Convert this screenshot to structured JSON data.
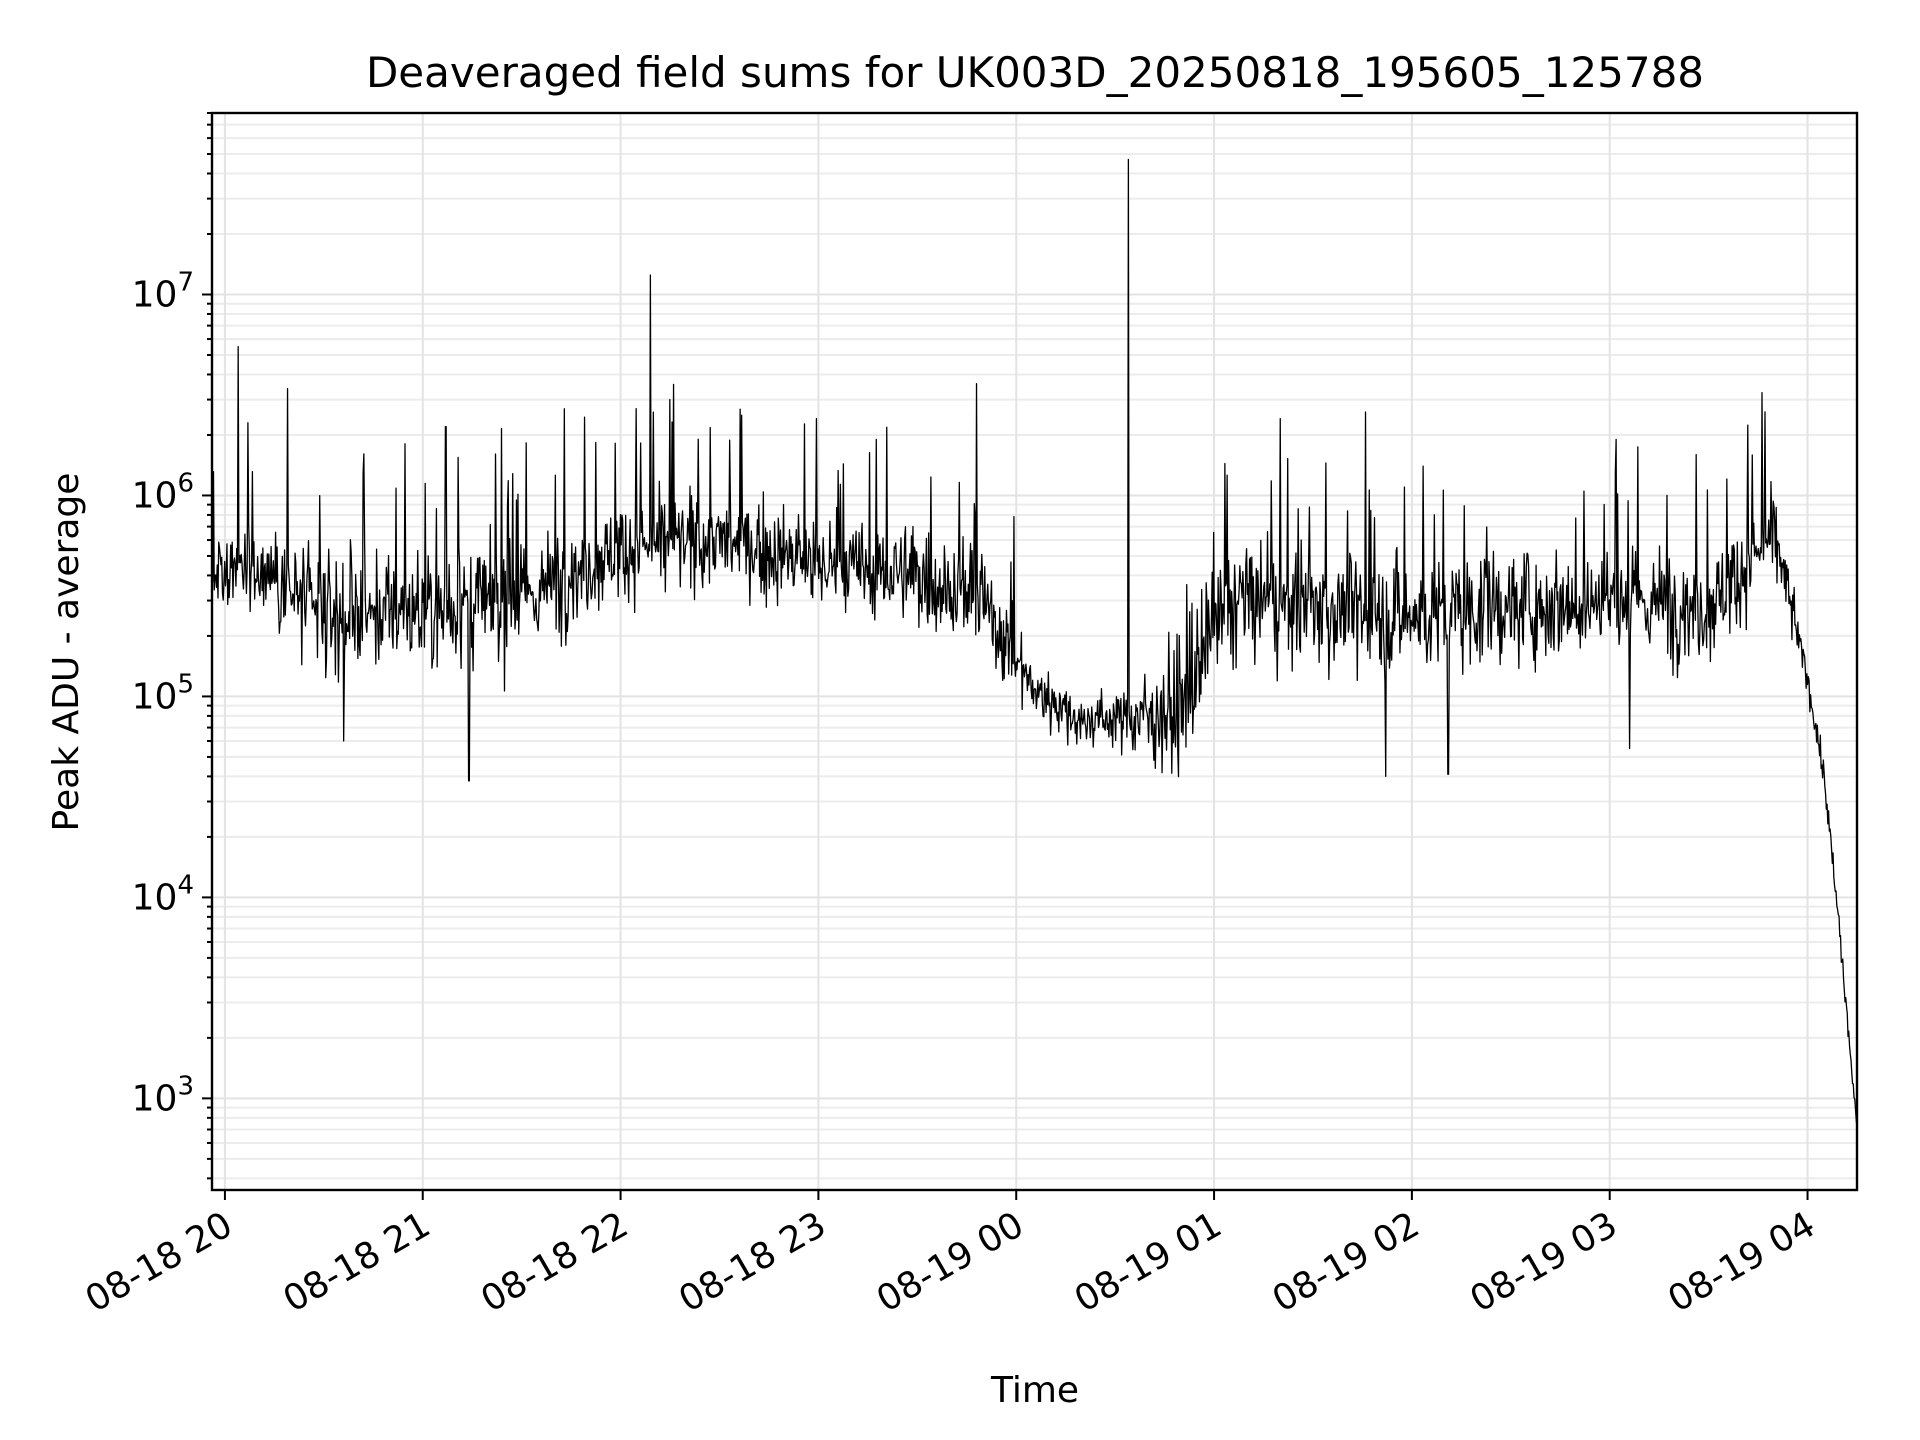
{
  "chart_data": {
    "type": "line",
    "title": "Deaveraged field sums for UK003D_20250818_195605_125788",
    "xlabel": "Time",
    "ylabel": "Peak ADU - average",
    "yscale": "log",
    "ylim": [
      350,
      80000000
    ],
    "xlim": [
      "2025-08-18 19:56:05",
      "2025-08-19 04:15:00"
    ],
    "grid": "on (major and minor)",
    "x_tick_labels": [
      "08-18 20",
      "08-18 21",
      "08-18 22",
      "08-18 23",
      "08-19 00",
      "08-19 01",
      "08-19 02",
      "08-19 03",
      "08-19 04"
    ],
    "x_tick_times": [
      "2025-08-18 20:00",
      "2025-08-18 21:00",
      "2025-08-18 22:00",
      "2025-08-18 23:00",
      "2025-08-19 00:00",
      "2025-08-19 01:00",
      "2025-08-19 02:00",
      "2025-08-19 03:00",
      "2025-08-19 04:00"
    ],
    "y_ticks": [
      {
        "base": "10",
        "exp": "3",
        "value": 1000
      },
      {
        "base": "10",
        "exp": "4",
        "value": 10000
      },
      {
        "base": "10",
        "exp": "5",
        "value": 100000
      },
      {
        "base": "10",
        "exp": "6",
        "value": 1000000
      },
      {
        "base": "10",
        "exp": "7",
        "value": 10000000
      }
    ],
    "series_color": "#000000",
    "envelope": {
      "time": [
        "2025-08-18 19:56",
        "2025-08-18 20:10",
        "2025-08-18 20:30",
        "2025-08-18 21:00",
        "2025-08-18 21:30",
        "2025-08-18 22:00",
        "2025-08-18 22:30",
        "2025-08-18 23:00",
        "2025-08-18 23:30",
        "2025-08-18 23:50",
        "2025-08-19 00:05",
        "2025-08-19 00:20",
        "2025-08-19 00:35",
        "2025-08-19 00:50",
        "2025-08-19 01:05",
        "2025-08-19 01:30",
        "2025-08-19 02:00",
        "2025-08-19 02:30",
        "2025-08-19 03:00",
        "2025-08-19 03:30",
        "2025-08-19 03:50",
        "2025-08-19 04:00",
        "2025-08-19 04:05",
        "2025-08-19 04:10",
        "2025-08-19 04:15"
      ],
      "median": [
        400000,
        450000,
        250000,
        270000,
        300000,
        550000,
        600000,
        450000,
        400000,
        300000,
        110000,
        75000,
        80000,
        85000,
        300000,
        280000,
        250000,
        280000,
        300000,
        280000,
        650000,
        120000,
        40000,
        6000,
        700
      ],
      "spread": [
        0.25,
        0.3,
        0.35,
        0.4,
        0.35,
        0.3,
        0.28,
        0.3,
        0.3,
        0.35,
        0.2,
        0.15,
        0.2,
        0.45,
        0.4,
        0.35,
        0.38,
        0.35,
        0.35,
        0.35,
        0.25,
        0.1,
        0.08,
        0.1,
        0.05
      ]
    },
    "spikes": [
      {
        "time": "2025-08-18 20:04",
        "value": 5500000
      },
      {
        "time": "2025-08-18 20:07",
        "value": 2300000
      },
      {
        "time": "2025-08-18 20:19",
        "value": 3400000
      },
      {
        "time": "2025-08-18 21:07",
        "value": 2200000
      },
      {
        "time": "2025-08-18 21:43",
        "value": 2700000
      },
      {
        "time": "2025-08-18 22:09",
        "value": 12500000
      },
      {
        "time": "2025-08-18 22:15",
        "value": 3000000
      },
      {
        "time": "2025-08-18 23:48",
        "value": 3600000
      },
      {
        "time": "2025-08-19 00:34",
        "value": 47000000
      },
      {
        "time": "2025-08-19 01:46",
        "value": 2600000
      },
      {
        "time": "2025-08-19 03:02",
        "value": 1900000
      }
    ],
    "dips": [
      {
        "time": "2025-08-18 21:14",
        "value": 38000
      },
      {
        "time": "2025-08-18 20:36",
        "value": 60000
      },
      {
        "time": "2025-08-19 01:52",
        "value": 40000
      },
      {
        "time": "2025-08-19 02:11",
        "value": 41000
      },
      {
        "time": "2025-08-19 03:06",
        "value": 55000
      }
    ]
  }
}
